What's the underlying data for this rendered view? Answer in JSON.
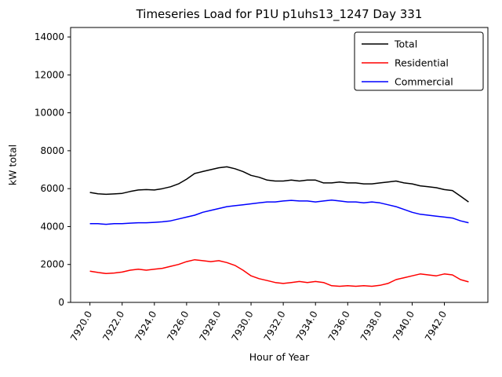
{
  "chart_data": {
    "type": "line",
    "title": "Timeseries Load for P1U p1uhs13_1247  Day 331",
    "xlabel": "Hour of Year",
    "ylabel": "kW total",
    "xlim": [
      7918.8,
      7944.7
    ],
    "ylim": [
      0,
      14500
    ],
    "grid": false,
    "legend_position": "upper right",
    "xticks": [
      7920,
      7922,
      7924,
      7926,
      7928,
      7930,
      7932,
      7934,
      7936,
      7938,
      7940,
      7942
    ],
    "xtick_labels": [
      "7920.0",
      "7922.0",
      "7924.0",
      "7926.0",
      "7928.0",
      "7930.0",
      "7932.0",
      "7934.0",
      "7936.0",
      "7938.0",
      "7940.0",
      "7942.0"
    ],
    "yticks": [
      0,
      2000,
      4000,
      6000,
      8000,
      10000,
      12000,
      14000
    ],
    "ytick_labels": [
      "0",
      "2000",
      "4000",
      "6000",
      "8000",
      "10000",
      "12000",
      "14000"
    ],
    "x": [
      7920.0,
      7920.5,
      7921.0,
      7921.5,
      7922.0,
      7922.5,
      7923.0,
      7923.5,
      7924.0,
      7924.5,
      7925.0,
      7925.5,
      7926.0,
      7926.5,
      7927.0,
      7927.5,
      7928.0,
      7928.5,
      7929.0,
      7929.5,
      7930.0,
      7930.5,
      7931.0,
      7931.5,
      7932.0,
      7932.5,
      7933.0,
      7933.5,
      7934.0,
      7934.5,
      7935.0,
      7935.5,
      7936.0,
      7936.5,
      7937.0,
      7937.5,
      7938.0,
      7938.5,
      7939.0,
      7939.5,
      7940.0,
      7940.5,
      7941.0,
      7941.5,
      7942.0,
      7942.5,
      7943.0,
      7943.5
    ],
    "series": [
      {
        "name": "Total",
        "color": "#000000",
        "values": [
          5800,
          5730,
          5700,
          5720,
          5750,
          5850,
          5930,
          5950,
          5930,
          6000,
          6100,
          6250,
          6500,
          6800,
          6900,
          7000,
          7100,
          7150,
          7050,
          6900,
          6700,
          6600,
          6450,
          6400,
          6400,
          6450,
          6400,
          6450,
          6450,
          6300,
          6300,
          6350,
          6300,
          6300,
          6250,
          6250,
          6300,
          6350,
          6400,
          6300,
          6250,
          6150,
          6100,
          6050,
          5950,
          5900,
          5600,
          5300
        ]
      },
      {
        "name": "Residential",
        "color": "#ff0000",
        "values": [
          1650,
          1580,
          1520,
          1550,
          1600,
          1700,
          1750,
          1700,
          1750,
          1800,
          1900,
          2000,
          2150,
          2250,
          2200,
          2150,
          2200,
          2100,
          1950,
          1700,
          1400,
          1250,
          1150,
          1050,
          1000,
          1050,
          1100,
          1050,
          1100,
          1050,
          880,
          850,
          880,
          850,
          880,
          850,
          900,
          1000,
          1200,
          1300,
          1400,
          1500,
          1450,
          1400,
          1500,
          1450,
          1200,
          1080
        ]
      },
      {
        "name": "Commercial",
        "color": "#0000ff",
        "values": [
          4150,
          4150,
          4120,
          4150,
          4150,
          4180,
          4200,
          4200,
          4220,
          4250,
          4300,
          4400,
          4500,
          4600,
          4750,
          4850,
          4950,
          5050,
          5100,
          5150,
          5200,
          5250,
          5300,
          5300,
          5350,
          5380,
          5350,
          5350,
          5300,
          5350,
          5400,
          5350,
          5300,
          5300,
          5250,
          5300,
          5250,
          5150,
          5050,
          4900,
          4750,
          4650,
          4600,
          4550,
          4500,
          4450,
          4300,
          4200
        ]
      }
    ]
  }
}
